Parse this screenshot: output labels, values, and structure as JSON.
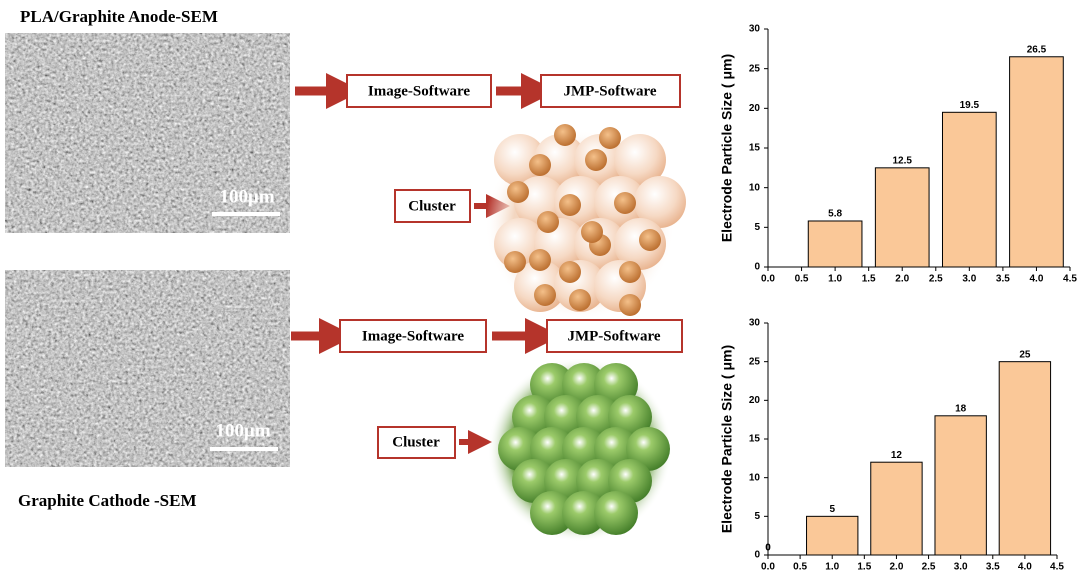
{
  "panels": {
    "anode": {
      "title": "PLA/Graphite Anode-SEM",
      "scale_bar": "100μm",
      "steps": [
        "Image-Software",
        "JMP-Software"
      ],
      "cluster": "Cluster"
    },
    "cathode": {
      "title": "Graphite Cathode -SEM",
      "scale_bar": "100μm",
      "steps": [
        "Image-Software",
        "JMP-Software"
      ],
      "cluster": "Cluster"
    }
  },
  "chart_data": [
    {
      "type": "bar",
      "ylabel": "Electrode Particle Size ( μm)",
      "x": [
        1,
        2,
        3,
        4
      ],
      "values": [
        5.8,
        12.5,
        19.5,
        26.5
      ],
      "color": "#fac898",
      "xlim": [
        0,
        4.5
      ],
      "ylim": [
        0,
        30
      ],
      "xticks": [
        {
          "value": 0,
          "label": "0.0"
        },
        {
          "value": 0.5,
          "label": "0.5"
        },
        {
          "value": 1,
          "label": "1.0"
        },
        {
          "value": 1.5,
          "label": "1.5"
        },
        {
          "value": 2,
          "label": "2.0"
        },
        {
          "value": 2.5,
          "label": "2.5"
        },
        {
          "value": 3,
          "label": "3.0"
        },
        {
          "value": 3.5,
          "label": "3.5"
        },
        {
          "value": 4,
          "label": "4.0"
        },
        {
          "value": 4.5,
          "label": "4.5"
        }
      ],
      "yticks": [
        0,
        5,
        10,
        15,
        20,
        25,
        30
      ]
    },
    {
      "type": "bar",
      "ylabel": "Electrode Particle Size ( μm)",
      "x": [
        0,
        1,
        2,
        3,
        4
      ],
      "values": [
        0,
        5,
        12,
        18,
        25
      ],
      "color": "#fac898",
      "xlim": [
        0,
        4.5
      ],
      "ylim": [
        0,
        30
      ],
      "xticks": [
        {
          "value": 0,
          "label": "0.0"
        },
        {
          "value": 0.5,
          "label": "0.5"
        },
        {
          "value": 1,
          "label": "1.0"
        },
        {
          "value": 1.5,
          "label": "1.5"
        },
        {
          "value": 2,
          "label": "2.0"
        },
        {
          "value": 2.5,
          "label": "2.5"
        },
        {
          "value": 3,
          "label": "3.0"
        },
        {
          "value": 3.5,
          "label": "3.5"
        },
        {
          "value": 4,
          "label": "4.0"
        },
        {
          "value": 4.5,
          "label": "4.5"
        }
      ],
      "yticks": [
        0,
        5,
        10,
        15,
        20,
        25,
        30
      ]
    }
  ]
}
